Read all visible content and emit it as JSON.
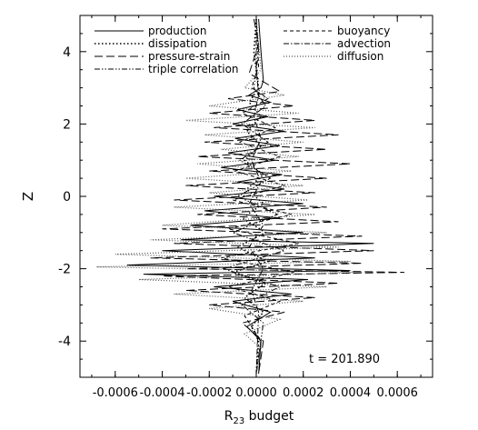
{
  "chart_data": {
    "type": "line",
    "title": "",
    "xlabel_main": "R",
    "xlabel_sub": "23",
    "xlabel_rest": " budget",
    "ylabel": "Z",
    "xlim": [
      -0.00075,
      0.00075
    ],
    "ylim": [
      -5,
      5
    ],
    "x_ticks": [
      -0.0006,
      -0.0004,
      -0.0002,
      0.0,
      0.0002,
      0.0004,
      0.0006
    ],
    "x_tick_labels": [
      "-0.0006",
      "-0.0004",
      "-0.0002",
      "0.0000",
      "0.0002",
      "0.0004",
      "0.0006"
    ],
    "y_ticks": [
      -4,
      -2,
      0,
      2,
      4
    ],
    "y_tick_labels": [
      "-4",
      "-2",
      "0",
      "2",
      "4"
    ],
    "grid": false,
    "legend_placement": "top",
    "annotation": "t = 201.890",
    "series": [
      {
        "name": "production",
        "dash": "solid",
        "points": [
          [
            1e-05,
            4.9
          ],
          [
            2e-05,
            4.0
          ],
          [
            3e-05,
            3.2
          ],
          [
            2e-05,
            3.0
          ],
          [
            -3e-05,
            2.8
          ],
          [
            6e-05,
            2.6
          ],
          [
            -8e-05,
            2.4
          ],
          [
            5e-05,
            2.2
          ],
          [
            -0.0001,
            2.0
          ],
          [
            0.00012,
            1.8
          ],
          [
            -9e-05,
            1.6
          ],
          [
            0.0001,
            1.4
          ],
          [
            -0.00012,
            1.2
          ],
          [
            8e-05,
            1.0
          ],
          [
            -0.00015,
            0.8
          ],
          [
            0.00011,
            0.6
          ],
          [
            -8e-05,
            0.4
          ],
          [
            0.00012,
            0.2
          ],
          [
            -0.00018,
            0.0
          ],
          [
            0.0002,
            -0.2
          ],
          [
            -0.00022,
            -0.4
          ],
          [
            0.0001,
            -0.6
          ],
          [
            -0.00028,
            -0.8
          ],
          [
            0.0002,
            -1.0
          ],
          [
            -0.00032,
            -1.2
          ],
          [
            0.0005,
            -1.3
          ],
          [
            -0.0004,
            -1.5
          ],
          [
            0.00025,
            -1.7
          ],
          [
            -0.00055,
            -1.9
          ],
          [
            0.0004,
            -2.05
          ],
          [
            -0.00048,
            -2.15
          ],
          [
            0.00022,
            -2.3
          ],
          [
            -0.00018,
            -2.5
          ],
          [
            0.00015,
            -2.7
          ],
          [
            -0.0001,
            -2.9
          ],
          [
            6e-05,
            -3.2
          ],
          [
            -4e-05,
            -3.6
          ],
          [
            2e-05,
            -4.0
          ],
          [
            1e-05,
            -4.9
          ]
        ]
      },
      {
        "name": "dissipation",
        "dash": "dot",
        "points": [
          [
            0.0,
            4.9
          ],
          [
            -1e-05,
            4.0
          ],
          [
            1e-05,
            3.0
          ],
          [
            -3e-05,
            2.6
          ],
          [
            2e-05,
            2.2
          ],
          [
            -4e-05,
            1.8
          ],
          [
            2e-05,
            1.4
          ],
          [
            -5e-05,
            1.0
          ],
          [
            3e-05,
            0.6
          ],
          [
            -4e-05,
            0.2
          ],
          [
            3e-05,
            -0.2
          ],
          [
            -6e-05,
            -0.6
          ],
          [
            4e-05,
            -1.0
          ],
          [
            -8e-05,
            -1.4
          ],
          [
            5e-05,
            -1.8
          ],
          [
            -0.0001,
            -2.1
          ],
          [
            4e-05,
            -2.4
          ],
          [
            -5e-05,
            -2.8
          ],
          [
            3e-05,
            -3.2
          ],
          [
            -2e-05,
            -3.6
          ],
          [
            1e-05,
            -4.0
          ],
          [
            0.0,
            -4.9
          ]
        ]
      },
      {
        "name": "pressure-strain",
        "dash": "longdash",
        "points": [
          [
            -1e-05,
            4.9
          ],
          [
            1e-05,
            4.2
          ],
          [
            -3e-05,
            3.4
          ],
          [
            0.0001,
            2.9
          ],
          [
            -0.00012,
            2.7
          ],
          [
            0.00016,
            2.5
          ],
          [
            -0.0002,
            2.3
          ],
          [
            0.00025,
            2.1
          ],
          [
            -0.00018,
            1.9
          ],
          [
            0.00035,
            1.7
          ],
          [
            -0.00022,
            1.5
          ],
          [
            0.0003,
            1.3
          ],
          [
            -0.00025,
            1.1
          ],
          [
            0.0004,
            0.9
          ],
          [
            -0.0002,
            0.7
          ],
          [
            0.0003,
            0.5
          ],
          [
            -0.0003,
            0.3
          ],
          [
            0.00025,
            0.1
          ],
          [
            -0.00035,
            -0.1
          ],
          [
            0.0003,
            -0.3
          ],
          [
            -0.00025,
            -0.5
          ],
          [
            0.00035,
            -0.7
          ],
          [
            -0.0004,
            -0.9
          ],
          [
            0.00045,
            -1.1
          ],
          [
            -0.00035,
            -1.3
          ],
          [
            0.0005,
            -1.5
          ],
          [
            -0.00045,
            -1.7
          ],
          [
            0.00045,
            -1.85
          ],
          [
            -0.0003,
            -2.0
          ],
          [
            0.00063,
            -2.1
          ],
          [
            -0.0004,
            -2.2
          ],
          [
            0.00035,
            -2.4
          ],
          [
            -0.0003,
            -2.6
          ],
          [
            0.00025,
            -2.8
          ],
          [
            -0.0002,
            -3.0
          ],
          [
            0.00012,
            -3.2
          ],
          [
            -6e-05,
            -3.5
          ],
          [
            3e-05,
            -4.0
          ],
          [
            1e-05,
            -4.9
          ]
        ]
      },
      {
        "name": "triple correlation",
        "dash": "dashdotdot",
        "points": [
          [
            0.0,
            4.9
          ],
          [
            1e-05,
            4.0
          ],
          [
            -1e-05,
            3.0
          ],
          [
            4e-05,
            2.5
          ],
          [
            -6e-05,
            2.0
          ],
          [
            5e-05,
            1.5
          ],
          [
            -7e-05,
            1.0
          ],
          [
            6e-05,
            0.5
          ],
          [
            -8e-05,
            0.0
          ],
          [
            9e-05,
            -0.5
          ],
          [
            -0.0001,
            -1.0
          ],
          [
            0.00012,
            -1.5
          ],
          [
            -0.00014,
            -2.0
          ],
          [
            0.0001,
            -2.5
          ],
          [
            -6e-05,
            -3.0
          ],
          [
            3e-05,
            -3.5
          ],
          [
            0.0,
            -4.9
          ]
        ]
      },
      {
        "name": "buoyancy",
        "dash": "shortdash",
        "points": [
          [
            0.0,
            4.9
          ],
          [
            1e-05,
            3.6
          ],
          [
            -2e-05,
            3.0
          ],
          [
            5e-05,
            2.7
          ],
          [
            -6e-05,
            2.3
          ],
          [
            8e-05,
            1.9
          ],
          [
            -7e-05,
            1.5
          ],
          [
            0.0001,
            1.1
          ],
          [
            -9e-05,
            0.7
          ],
          [
            0.00012,
            0.3
          ],
          [
            -0.0001,
            -0.1
          ],
          [
            0.00015,
            -0.5
          ],
          [
            -0.00012,
            -0.9
          ],
          [
            0.00018,
            -1.3
          ],
          [
            -0.00015,
            -1.7
          ],
          [
            0.00016,
            -2.1
          ],
          [
            -0.00012,
            -2.5
          ],
          [
            0.0001,
            -2.9
          ],
          [
            -5e-05,
            -3.3
          ],
          [
            2e-05,
            -4.0
          ],
          [
            0.0,
            -4.9
          ]
        ]
      },
      {
        "name": "advection",
        "dash": "dashdot",
        "points": [
          [
            0.0,
            4.9
          ],
          [
            0.0,
            3.5
          ],
          [
            1e-05,
            2.8
          ],
          [
            -1e-05,
            2.2
          ],
          [
            2e-05,
            1.6
          ],
          [
            -2e-05,
            1.0
          ],
          [
            2e-05,
            0.4
          ],
          [
            -3e-05,
            -0.2
          ],
          [
            3e-05,
            -0.8
          ],
          [
            -3e-05,
            -1.4
          ],
          [
            3e-05,
            -2.0
          ],
          [
            -2e-05,
            -2.6
          ],
          [
            1e-05,
            -3.2
          ],
          [
            0.0,
            -4.9
          ]
        ]
      },
      {
        "name": "diffusion",
        "dash": "finedot",
        "points": [
          [
            0.0,
            4.9
          ],
          [
            2e-05,
            3.5
          ],
          [
            -5e-05,
            3.0
          ],
          [
            0.00012,
            2.8
          ],
          [
            -0.0002,
            2.5
          ],
          [
            0.00018,
            2.3
          ],
          [
            -0.0003,
            2.1
          ],
          [
            0.00025,
            1.9
          ],
          [
            -0.00022,
            1.7
          ],
          [
            0.0002,
            1.5
          ],
          [
            -0.00015,
            1.3
          ],
          [
            0.00018,
            1.1
          ],
          [
            -0.00025,
            0.9
          ],
          [
            0.00015,
            0.7
          ],
          [
            -0.0003,
            0.5
          ],
          [
            0.0002,
            0.3
          ],
          [
            -0.0002,
            0.1
          ],
          [
            0.00022,
            -0.1
          ],
          [
            -0.00035,
            -0.3
          ],
          [
            0.00025,
            -0.5
          ],
          [
            -0.0004,
            -0.8
          ],
          [
            0.0003,
            -1.0
          ],
          [
            -0.00045,
            -1.2
          ],
          [
            0.00035,
            -1.4
          ],
          [
            -0.0006,
            -1.6
          ],
          [
            0.0004,
            -1.8
          ],
          [
            -0.00068,
            -1.95
          ],
          [
            0.00045,
            -2.1
          ],
          [
            -0.0005,
            -2.3
          ],
          [
            0.0003,
            -2.5
          ],
          [
            -0.00035,
            -2.7
          ],
          [
            0.0002,
            -2.9
          ],
          [
            -0.0002,
            -3.1
          ],
          [
            0.0001,
            -3.4
          ],
          [
            -5e-05,
            -3.8
          ],
          [
            2e-05,
            -4.2
          ],
          [
            0.0,
            -4.9
          ]
        ]
      }
    ]
  }
}
